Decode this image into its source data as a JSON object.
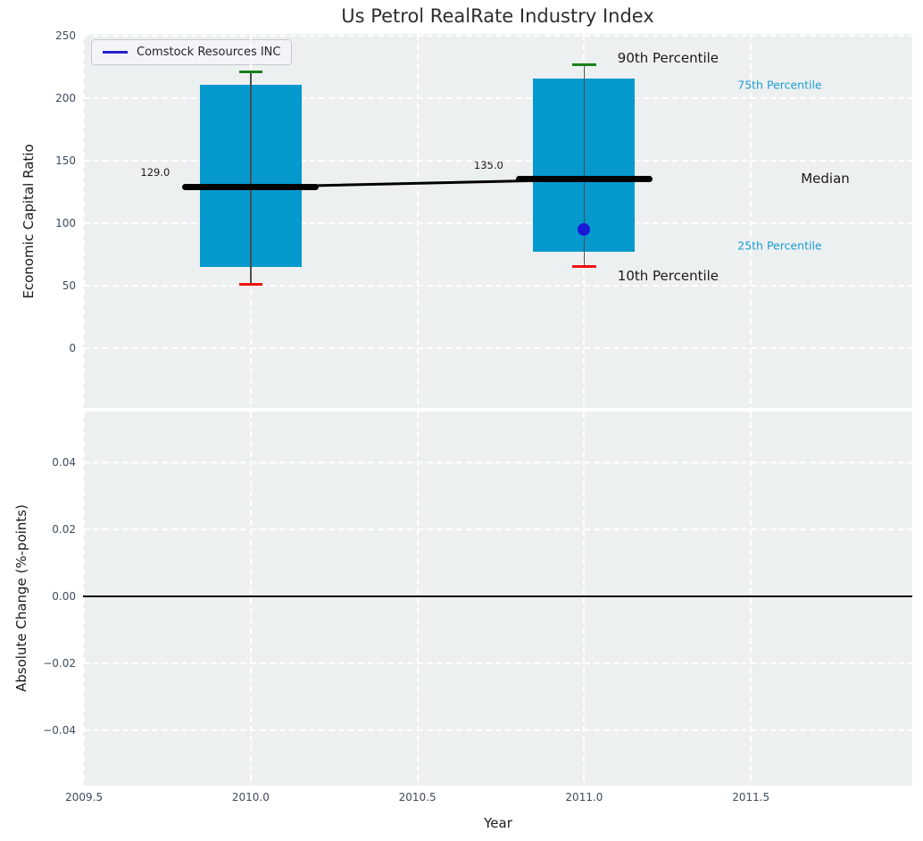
{
  "title": "Us Petrol RealRate Industry Index",
  "legend": {
    "label": "Comstock Resources INC"
  },
  "axes": {
    "top_ylabel": "Economic Capital Ratio",
    "bottom_ylabel": "Absolute Change (%-points)",
    "xlabel": "Year"
  },
  "colors": {
    "plot_bg": "#edf0f1",
    "grid": "#ffffff",
    "box_fill": "#0699ce",
    "whisker": "#4d4d4d",
    "cap_high": "#1a801a",
    "cap_low": "#ee1111",
    "median": "#000000",
    "marker": "#1a1ad6",
    "series_line": "#2323cc",
    "percentile_blue": "#1b9cd2",
    "tick": "#3d4c5c"
  },
  "chart_data": [
    {
      "type": "box",
      "title": "Us Petrol RealRate Industry Index",
      "ylabel": "Economic Capital Ratio",
      "series_label": "Comstock Resources INC",
      "xlim": [
        2009.497,
        2011.984
      ],
      "ylim": [
        -48,
        251.5
      ],
      "grid": "white dashed",
      "legend_position": "upper left",
      "box_width": 0.305,
      "median_line_width": 0.41,
      "cap_width": 0.07,
      "yticks": [
        {
          "v": 0,
          "label": "0"
        },
        {
          "v": 50,
          "label": "50"
        },
        {
          "v": 100,
          "label": "100"
        },
        {
          "v": 150,
          "label": "150"
        },
        {
          "v": 200,
          "label": "200"
        },
        {
          "v": 250,
          "label": "250"
        }
      ],
      "xticks": [
        {
          "v": 2009.5,
          "label": "2009.5"
        },
        {
          "v": 2010.0,
          "label": "2010.0"
        },
        {
          "v": 2010.5,
          "label": "2010.5"
        },
        {
          "v": 2011.0,
          "label": "2011.0"
        },
        {
          "v": 2011.5,
          "label": "2011.5"
        }
      ],
      "boxes": [
        {
          "x": 2010.0,
          "p10": 51,
          "q25": 65,
          "median": 129.0,
          "q75": 211,
          "p90": 221,
          "median_label": "129.0"
        },
        {
          "x": 2011.0,
          "p10": 65,
          "q25": 77,
          "median": 135.0,
          "q75": 216,
          "p90": 227,
          "median_label": "135.0",
          "company_marker": {
            "name": "Comstock Resources INC",
            "y": 95
          }
        }
      ],
      "median_trend": [
        [
          2010.0,
          129.0
        ],
        [
          2011.0,
          135.0
        ]
      ],
      "annotations": [
        {
          "text": "90th Percentile",
          "x": 2011.1,
          "y": 232,
          "color": "#1a1a1a",
          "size": 15
        },
        {
          "text": "75th Percentile",
          "x": 2011.46,
          "y": 211,
          "color": "#1b9cd2",
          "size": 12.5
        },
        {
          "text": "Median",
          "x": 2011.65,
          "y": 136,
          "color": "#1a1a1a",
          "size": 15
        },
        {
          "text": "25th Percentile",
          "x": 2011.46,
          "y": 82,
          "color": "#1b9cd2",
          "size": 12.5
        },
        {
          "text": "10th Percentile",
          "x": 2011.1,
          "y": 58,
          "color": "#1a1a1a",
          "size": 15
        }
      ]
    },
    {
      "type": "line",
      "ylabel": "Absolute Change (%-points)",
      "xlabel": "Year",
      "xlim": [
        2009.497,
        2011.984
      ],
      "ylim": [
        -0.0565,
        0.0552
      ],
      "grid": "white dashed",
      "zero_line": true,
      "yticks": [
        {
          "v": 0.04,
          "label": "0.04"
        },
        {
          "v": 0.02,
          "label": "0.02"
        },
        {
          "v": 0.0,
          "label": "0.00"
        },
        {
          "v": -0.02,
          "label": "−0.02"
        },
        {
          "v": -0.04,
          "label": "−0.04"
        }
      ]
    }
  ]
}
